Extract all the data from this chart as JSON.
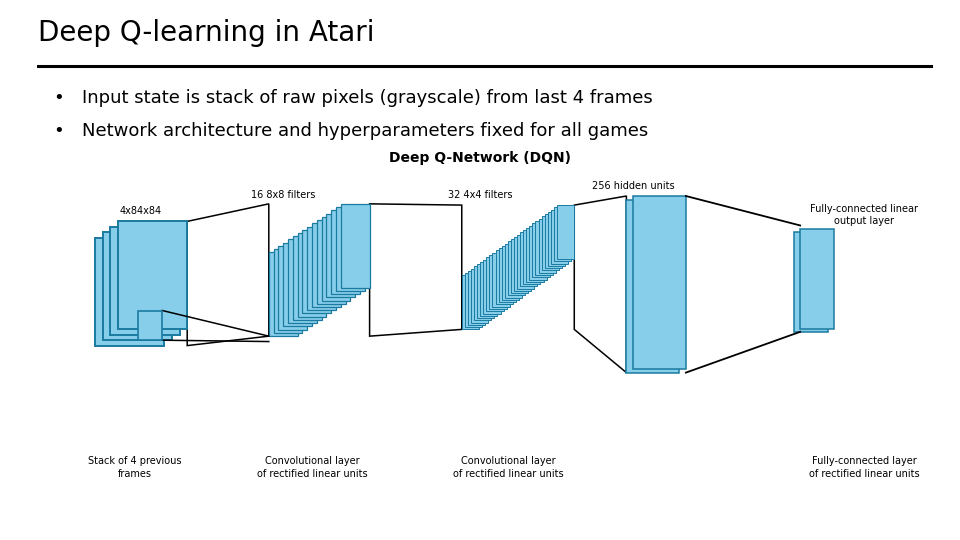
{
  "title": "Deep Q-learning in Atari",
  "bullets": [
    "Input state is stack of raw pixels (grayscale) from last 4 frames",
    "Network architecture and hyperparameters fixed for all games"
  ],
  "dqn_label": "Deep Q-Network (DQN)",
  "bg_color": "#ffffff",
  "title_fontsize": 20,
  "bullet_fontsize": 13,
  "dqn_label_fontsize": 10,
  "ann_fontsize": 7,
  "light_blue": "#87CEEB",
  "edge_color": "#1A7AA0",
  "black": "#000000",
  "title_weight": "normal"
}
